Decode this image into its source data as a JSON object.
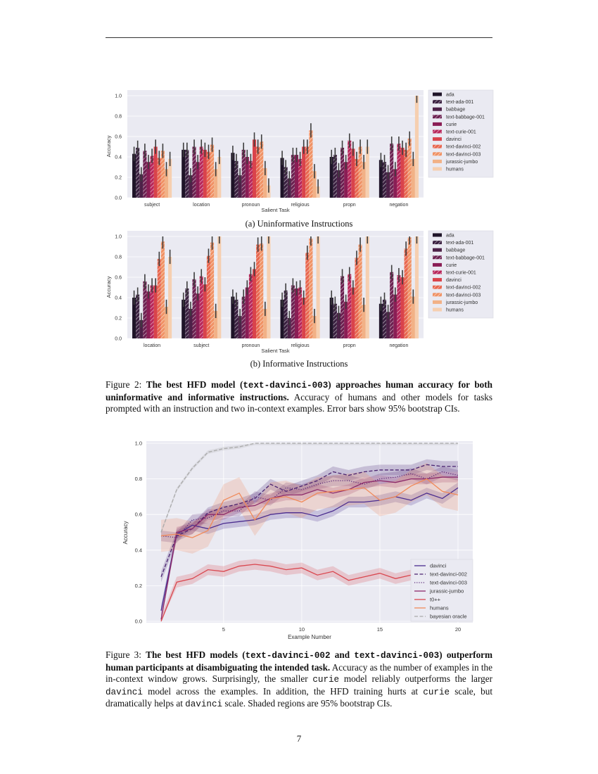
{
  "page_number": "7",
  "figure2": {
    "caption": {
      "label": "Figure 2: ",
      "bold1": "The best HFD model (",
      "code1": "text-davinci-003",
      "bold2": ") approaches human accuracy for both uninformative and informative instructions.",
      "rest": "  Accuracy of humans and other models for tasks prompted with an instruction and two in-context examples. Error bars show 95% bootstrap CIs."
    }
  },
  "figure3": {
    "caption": {
      "label": "Figure 3: ",
      "bold1": "The best HFD models (",
      "code1": "text-davinci-002",
      "bold2": " and ",
      "code2": "text-davinci-003",
      "bold3": ") outperform human participants at disambiguating the intended task.",
      "t1": "  Accuracy as the number of examples in the in-context window grows.  Surprisingly, the smaller ",
      "c1": "curie",
      "t2": " model reliably outperforms the larger ",
      "c2": "davinci",
      "t3": " model across the examples. In addition, the HFD training hurts at ",
      "c3": "curie",
      "t4": " scale, but dramatically helps at ",
      "c4": "davinci",
      "t5": " scale. Shaded regions are 95% bootstrap CIs."
    }
  },
  "chart_data": [
    {
      "type": "bar",
      "subtitle": "(a) Uninformative Instructions",
      "xlabel": "Salient Task",
      "ylabel": "Accuracy",
      "ylim": [
        0,
        1.05
      ],
      "yticks": [
        "0.0",
        "0.2",
        "0.4",
        "0.6",
        "0.8",
        "1.0"
      ],
      "grid": true,
      "legend_placement": "right-outside",
      "error_bars": "95% bootstrap CI",
      "ci_halfwidth_approx": 0.07,
      "categories": [
        "subject",
        "location",
        "pronoun",
        "religious",
        "propn",
        "negation"
      ],
      "series": [
        {
          "name": "ada",
          "color": "#1e1428",
          "hatched": false,
          "values": [
            0.43,
            0.47,
            0.44,
            0.39,
            0.4,
            0.37
          ]
        },
        {
          "name": "text-ada-001",
          "color": "#3a2040",
          "hatched": true,
          "values": [
            0.49,
            0.47,
            0.36,
            0.3,
            0.42,
            0.35
          ]
        },
        {
          "name": "babbage",
          "color": "#4d2148",
          "hatched": false,
          "values": [
            0.23,
            0.22,
            0.22,
            0.19,
            0.27,
            0.25
          ]
        },
        {
          "name": "text-babbage-001",
          "color": "#6c2050",
          "hatched": true,
          "values": [
            0.46,
            0.5,
            0.47,
            0.42,
            0.49,
            0.53
          ]
        },
        {
          "name": "curie",
          "color": "#8a1e55",
          "hatched": false,
          "values": [
            0.35,
            0.35,
            0.4,
            0.42,
            0.35,
            0.28
          ]
        },
        {
          "name": "text-curie-001",
          "color": "#b8265a",
          "hatched": true,
          "values": [
            0.41,
            0.5,
            0.36,
            0.38,
            0.56,
            0.53
          ]
        },
        {
          "name": "davinci",
          "color": "#d9434b",
          "hatched": false,
          "values": [
            0.5,
            0.47,
            0.57,
            0.5,
            0.48,
            0.49
          ]
        },
        {
          "name": "text-davinci-002",
          "color": "#e8674f",
          "hatched": true,
          "values": [
            0.39,
            0.45,
            0.5,
            0.5,
            0.38,
            0.47
          ]
        },
        {
          "name": "text-davinci-003",
          "color": "#f09265",
          "hatched": true,
          "values": [
            0.46,
            0.52,
            0.55,
            0.66,
            0.5,
            0.58
          ]
        },
        {
          "name": "jurassic-jumbo",
          "color": "#f2b186",
          "hatched": false,
          "values": [
            0.28,
            0.28,
            0.29,
            0.26,
            0.35,
            0.38
          ]
        },
        {
          "name": "humans",
          "color": "#f6cfb0",
          "hatched": false,
          "values": [
            0.38,
            0.4,
            0.12,
            0.11,
            0.5,
            1.0
          ]
        }
      ]
    },
    {
      "type": "bar",
      "subtitle": "(b) Informative Instructions",
      "xlabel": "Salient Task",
      "ylabel": "Accuracy",
      "ylim": [
        0,
        1.05
      ],
      "yticks": [
        "0.0",
        "0.2",
        "0.4",
        "0.6",
        "0.8",
        "1.0"
      ],
      "grid": true,
      "legend_placement": "right-outside",
      "error_bars": "95% bootstrap CI",
      "ci_halfwidth_approx": 0.07,
      "categories": [
        "location",
        "subject",
        "pronoun",
        "religious",
        "propn",
        "negation"
      ],
      "series": [
        {
          "name": "ada",
          "color": "#1e1428",
          "hatched": false,
          "values": [
            0.4,
            0.38,
            0.41,
            0.38,
            0.4,
            0.34
          ]
        },
        {
          "name": "text-ada-001",
          "color": "#3a2040",
          "hatched": true,
          "values": [
            0.43,
            0.49,
            0.38,
            0.47,
            0.34,
            0.38
          ]
        },
        {
          "name": "babbage",
          "color": "#4d2148",
          "hatched": false,
          "values": [
            0.18,
            0.29,
            0.22,
            0.2,
            0.25,
            0.26
          ]
        },
        {
          "name": "text-babbage-001",
          "color": "#6c2050",
          "hatched": true,
          "values": [
            0.56,
            0.58,
            0.41,
            0.52,
            0.61,
            0.65
          ]
        },
        {
          "name": "curie",
          "color": "#8a1e55",
          "hatched": false,
          "values": [
            0.46,
            0.44,
            0.5,
            0.49,
            0.36,
            0.43
          ]
        },
        {
          "name": "text-curie-001",
          "color": "#b8265a",
          "hatched": true,
          "values": [
            0.52,
            0.61,
            0.63,
            0.5,
            0.63,
            0.62
          ]
        },
        {
          "name": "davinci",
          "color": "#d9434b",
          "hatched": false,
          "values": [
            0.52,
            0.53,
            0.68,
            0.4,
            0.5,
            0.6
          ]
        },
        {
          "name": "text-davinci-002",
          "color": "#e8674f",
          "hatched": true,
          "values": [
            0.78,
            0.81,
            0.92,
            0.84,
            0.79,
            0.88
          ]
        },
        {
          "name": "text-davinci-003",
          "color": "#f09265",
          "hatched": true,
          "values": [
            0.95,
            0.94,
            0.93,
            0.98,
            0.92,
            0.99
          ]
        },
        {
          "name": "jurassic-jumbo",
          "color": "#f2b186",
          "hatched": false,
          "values": [
            0.31,
            0.27,
            0.29,
            0.22,
            0.33,
            0.41
          ]
        },
        {
          "name": "humans",
          "color": "#f6cfb0",
          "hatched": false,
          "values": [
            0.8,
            1.0,
            1.0,
            1.0,
            1.0,
            1.0
          ]
        }
      ]
    },
    {
      "type": "line",
      "xlabel": "Example Number",
      "ylabel": "Accuracy",
      "xlim": [
        0.1,
        20.9
      ],
      "ylim": [
        0,
        1.01
      ],
      "xticks": [
        "5",
        "10",
        "15",
        "20"
      ],
      "yticks": [
        "0.0",
        "0.2",
        "0.4",
        "0.6",
        "0.8",
        "1.0"
      ],
      "grid": true,
      "legend_placement": "lower-right",
      "x": [
        1,
        2,
        3,
        4,
        5,
        6,
        7,
        8,
        9,
        10,
        11,
        12,
        13,
        14,
        15,
        16,
        17,
        18,
        19,
        20
      ],
      "series": [
        {
          "name": "davinci",
          "color": "#4b2d8f",
          "style": "solid",
          "ci": 0.03,
          "values": [
            0.06,
            0.49,
            0.54,
            0.52,
            0.55,
            0.56,
            0.57,
            0.6,
            0.61,
            0.61,
            0.59,
            0.62,
            0.67,
            0.67,
            0.68,
            0.7,
            0.68,
            0.72,
            0.69,
            0.75
          ]
        },
        {
          "name": "text-davinci-002",
          "color": "#4a2370",
          "style": "dashed",
          "ci": 0.03,
          "values": [
            0.25,
            0.48,
            0.52,
            0.61,
            0.64,
            0.66,
            0.69,
            0.77,
            0.73,
            0.76,
            0.79,
            0.84,
            0.82,
            0.84,
            0.85,
            0.85,
            0.85,
            0.88,
            0.87,
            0.87
          ]
        },
        {
          "name": "text-davinci-003",
          "color": "#5a2878",
          "style": "dotted",
          "ci": 0.03,
          "values": [
            0.48,
            0.47,
            0.57,
            0.58,
            0.62,
            0.62,
            0.7,
            0.68,
            0.75,
            0.74,
            0.77,
            0.79,
            0.79,
            0.77,
            0.8,
            0.81,
            0.83,
            0.8,
            0.84,
            0.82
          ]
        },
        {
          "name": "jurassic-jumbo",
          "color": "#8c2a6a",
          "style": "solid",
          "ci": 0.03,
          "values": [
            0.01,
            0.5,
            0.52,
            0.6,
            0.6,
            0.64,
            0.65,
            0.69,
            0.71,
            0.71,
            0.74,
            0.72,
            0.74,
            0.78,
            0.79,
            0.78,
            0.8,
            0.8,
            0.81,
            0.81
          ]
        },
        {
          "name": "t0++",
          "color": "#d9474f",
          "style": "solid",
          "ci": 0.03,
          "values": [
            0.0,
            0.22,
            0.24,
            0.29,
            0.28,
            0.31,
            0.32,
            0.31,
            0.29,
            0.3,
            0.26,
            0.28,
            0.23,
            0.25,
            0.27,
            0.24,
            0.26,
            0.28,
            0.27,
            0.27
          ]
        },
        {
          "name": "humans",
          "color": "#f08a5a",
          "style": "solid",
          "ci": 0.09,
          "values": [
            0.48,
            0.49,
            0.47,
            0.51,
            0.68,
            0.72,
            0.57,
            0.69,
            0.7,
            0.67,
            0.72,
            0.73,
            0.74,
            0.75,
            0.68,
            0.7,
            0.76,
            0.8,
            0.73,
            0.71
          ]
        },
        {
          "name": "bayesian oracle",
          "color": "#aaaaaa",
          "style": "dashed",
          "ci": 0.01,
          "values": [
            0.5,
            0.74,
            0.86,
            0.95,
            0.97,
            0.98,
            1.0,
            1.0,
            1.0,
            1.0,
            1.0,
            1.0,
            1.0,
            1.0,
            1.0,
            1.0,
            1.0,
            1.0,
            1.0,
            1.0
          ]
        }
      ]
    }
  ]
}
